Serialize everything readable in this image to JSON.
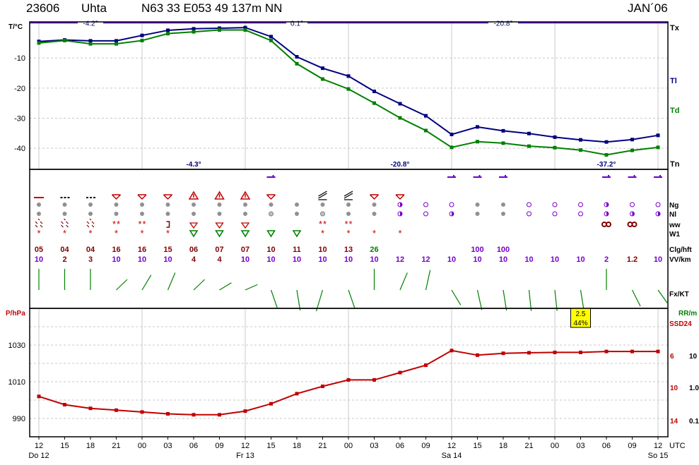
{
  "header": {
    "station_id": "23606",
    "station_name": "Uhta",
    "coords": "N63 33 E053 49 137m NN",
    "period": "JAN´06"
  },
  "colors": {
    "tl": "#000080",
    "td": "#008000",
    "tx": "#3030c0",
    "pressure": "#c00000",
    "extreme_line": "#6600cc",
    "grid": "#c8c8c8",
    "wind": "#008000",
    "ceiling_low": "#800000",
    "ceiling_high": "#7700cc",
    "vis": "#7700cc",
    "rr_label": "#008000",
    "ssd_label": "#c00000",
    "box_fill": "#ffff00"
  },
  "chart_data": [
    {
      "type": "line",
      "panel": "temperature",
      "ylabel": "T/°C",
      "ylim": [
        -47,
        2
      ],
      "yticks": [
        -10,
        -20,
        -30,
        -40
      ],
      "x": [
        "12",
        "15",
        "18",
        "21",
        "00",
        "03",
        "06",
        "09",
        "12",
        "15",
        "18",
        "21",
        "00",
        "03",
        "06",
        "09",
        "12",
        "15",
        "18",
        "21",
        "00",
        "03",
        "06",
        "09",
        "12"
      ],
      "day_labels": [
        {
          "index": 0,
          "label": "Do 12"
        },
        {
          "index": 8,
          "label": "Fr 13"
        },
        {
          "index": 16,
          "label": "Sa 14"
        },
        {
          "index": 24,
          "label": "So 15"
        }
      ],
      "x_unit": "UTC",
      "series": [
        {
          "name": "Tl",
          "values": [
            -4.5,
            -4.0,
            -4.3,
            -4.3,
            -2.5,
            -0.8,
            -0.3,
            -0.1,
            0.1,
            -2.9,
            -9.6,
            -13.4,
            -16.0,
            -21.1,
            -25.2,
            -29.2,
            -35.4,
            -32.9,
            -34.2,
            -35.1,
            -36.3,
            -37.2,
            -37.9,
            -37.1,
            -35.7
          ]
        },
        {
          "name": "Td",
          "values": [
            -5.0,
            -4.2,
            -5.3,
            -5.3,
            -4.2,
            -1.9,
            -1.3,
            -0.7,
            -0.7,
            -4.2,
            -11.9,
            -17.0,
            -20.3,
            -25.0,
            -29.9,
            -34.1,
            -39.7,
            -37.8,
            -38.3,
            -39.3,
            -39.8,
            -40.6,
            -42.2,
            -40.7,
            -39.7
          ]
        }
      ],
      "tx_line": {
        "value": 1.7,
        "labels": [
          {
            "text": "-4.2°",
            "index": 2
          },
          {
            "text": "0.1°",
            "index": 10
          },
          {
            "text": "-20.8°",
            "index": 18
          }
        ]
      },
      "tn_labels": [
        {
          "text": "-4.3°",
          "index": 6
        },
        {
          "text": "-20.8°",
          "index": 14
        },
        {
          "text": "-37.2°",
          "index": 22
        }
      ],
      "right_labels": {
        "tx": "Tx",
        "tl": "Tl",
        "td": "Td",
        "tn": "Tn"
      }
    },
    {
      "type": "line",
      "panel": "pressure",
      "ylabel": "P/hPa",
      "ylim": [
        980,
        1050
      ],
      "yticks": [
        990,
        1010,
        1030
      ],
      "series": [
        {
          "name": "P",
          "values": [
            1002,
            997.5,
            995.5,
            994.5,
            993.5,
            992.5,
            992,
            992,
            994,
            998,
            1003.5,
            1007.5,
            1011,
            1011,
            1015,
            1019,
            1027,
            1024.5,
            1025.5,
            1025.8,
            1026,
            1026,
            1026.5,
            1026.5,
            1026.5
          ]
        }
      ],
      "right_labels": {
        "rr": "RR/m",
        "ssd": "SSD24"
      },
      "right_ticks_red": [
        "6",
        "10",
        "14"
      ],
      "right_ticks_black": [
        "10",
        "1.0",
        "0.1"
      ],
      "box": {
        "index": 21,
        "line1": "2.5",
        "line2": "44%"
      }
    }
  ],
  "obs": {
    "row_labels": {
      "ng": "Ng",
      "nl": "Nl",
      "ww": "ww",
      "w1": "W1",
      "clg": "Clg/hft",
      "vv": "VV/km",
      "fx": "Fx/KT"
    },
    "clg": [
      "05",
      "04",
      "04",
      "16",
      "16",
      "15",
      "06",
      "07",
      "07",
      "10",
      "11",
      "10",
      "13",
      "26",
      "",
      "",
      "",
      "100",
      "100",
      "",
      "",
      "",
      "",
      "",
      ""
    ],
    "clg_high_indices": [
      13,
      17,
      18
    ],
    "vv": [
      "10",
      "2",
      "3",
      "10",
      "10",
      "10",
      "4",
      "4",
      "10",
      "10",
      "10",
      "10",
      "10",
      "10",
      "12",
      "12",
      "10",
      "10",
      "10",
      "10",
      "10",
      "10",
      "2",
      "1.2",
      "10"
    ],
    "vv_red_indices": [
      1,
      2,
      6,
      7,
      23
    ],
    "wind_dirs": [
      0,
      0,
      0,
      60,
      45,
      35,
      60,
      70,
      75,
      150,
      165,
      330,
      150,
      0,
      35,
      20,
      135,
      160,
      165,
      170,
      170,
      165,
      0,
      140,
      130
    ],
    "high_clouds": [
      9,
      16,
      17,
      18,
      22,
      23,
      24
    ],
    "ng": [
      "red_bar",
      "dots",
      "dots",
      "cv",
      "cv",
      "cv",
      "warn",
      "warn",
      "warn",
      "cv",
      "",
      "cb",
      "cb",
      "cv",
      "cv",
      "",
      "",
      "",
      "",
      "",
      "",
      "",
      "",
      "",
      ""
    ],
    "nl": [
      "g",
      "g",
      "g",
      "g",
      "g",
      "g",
      "g",
      "g",
      "g",
      "g",
      "g",
      "g",
      "g",
      "g",
      "p",
      "po",
      "po",
      "g",
      "g",
      "po",
      "po",
      "po",
      "p",
      "po",
      "po"
    ],
    "nl2": [
      "g",
      "g",
      "g",
      "g",
      "g",
      "g",
      "g",
      "g",
      "g",
      "h",
      "g",
      "h",
      "g",
      "g",
      "p",
      "po",
      "p",
      "g",
      "g",
      "po",
      "po",
      "po",
      "p",
      "p",
      "p"
    ],
    "ww": [
      "snowdots",
      "snowdots",
      "snowdots",
      "stars2",
      "stars2",
      "bracket",
      "tri",
      "tri",
      "tri",
      "",
      "",
      "stars2",
      "stars2",
      "",
      "",
      "",
      "",
      "",
      "",
      "",
      "",
      "",
      "fog",
      "fog",
      ""
    ],
    "w1": [
      "s",
      "s",
      "s",
      "s",
      "s",
      "s",
      "tri",
      "tri",
      "tri",
      "tri",
      "tri",
      "s",
      "s",
      "s",
      "s",
      "",
      "",
      "",
      "",
      "",
      "",
      "",
      "",
      "",
      ""
    ]
  }
}
